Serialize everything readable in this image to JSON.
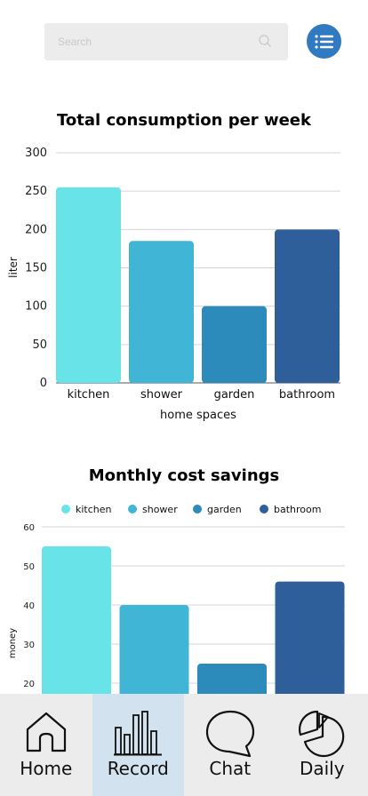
{
  "search": {
    "placeholder": "Search"
  },
  "menu_icon": "list-icon",
  "charts": [
    {
      "title": "Total consumption per week",
      "chart_data": {
        "type": "bar",
        "title": "Total consumption per week",
        "categories": [
          "kitchen",
          "shower",
          "garden",
          "bathroom"
        ],
        "values": [
          255,
          185,
          100,
          200
        ],
        "xlabel": "home spaces",
        "ylabel": "liter",
        "ylim": [
          0,
          300
        ],
        "yticks": [
          0,
          50,
          100,
          150,
          200,
          250,
          300
        ],
        "grid": true,
        "colors": [
          "#68e3e8",
          "#41b5d6",
          "#2c8bbb",
          "#2e5f9a"
        ]
      }
    },
    {
      "title": "Monthly cost savings",
      "chart_data": {
        "type": "bar",
        "title": "Monthly cost savings",
        "categories": [
          "kitchen",
          "shower",
          "garden",
          "bathroom"
        ],
        "legend": [
          "kitchen",
          "shower",
          "garden",
          "bathroom"
        ],
        "legend_position": "top",
        "values": [
          55,
          40,
          25,
          46
        ],
        "ylabel": "money",
        "ylim": [
          0,
          60
        ],
        "yticks": [
          20,
          30,
          40,
          50,
          60
        ],
        "grid": true,
        "colors": [
          "#68e3e8",
          "#41b5d6",
          "#2c8bbb",
          "#2e5f9a"
        ]
      }
    }
  ],
  "nav": {
    "active": "Record",
    "items": [
      {
        "label": "Home",
        "icon": "home-icon"
      },
      {
        "label": "Record",
        "icon": "bar-chart-icon"
      },
      {
        "label": "Chat",
        "icon": "chat-bubble-icon"
      },
      {
        "label": "Daily",
        "icon": "pie-chart-icon"
      }
    ]
  }
}
